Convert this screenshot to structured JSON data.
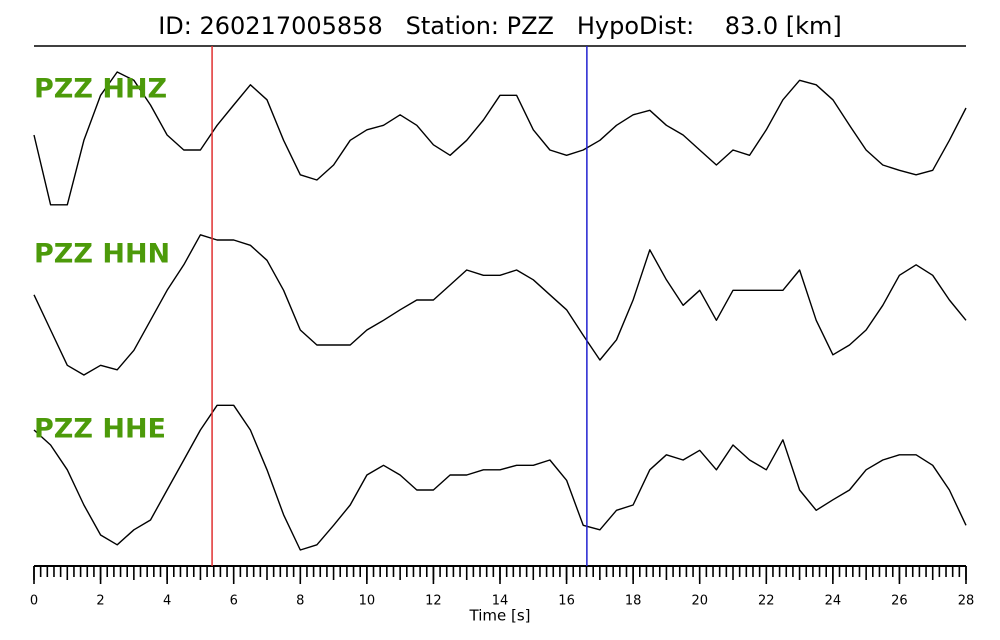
{
  "chart_data": {
    "type": "line",
    "title": "ID: 260217005858   Station: PZZ   HypoDist:    83.0 [km]",
    "xlabel": "Time [s]",
    "xlim": [
      0,
      28
    ],
    "xticks": [
      0,
      2,
      4,
      6,
      8,
      10,
      12,
      14,
      16,
      18,
      20,
      22,
      24,
      26,
      28
    ],
    "xminor": 0.2,
    "ylim": [
      -1,
      1
    ],
    "markers": [
      {
        "x": 5.35,
        "color": "#e03030"
      },
      {
        "x": 16.61,
        "color": "#2020d0"
      }
    ],
    "x": [
      0,
      0.5,
      1,
      1.5,
      2,
      2.5,
      3,
      3.5,
      4,
      4.5,
      5,
      5.5,
      6,
      6.5,
      7,
      7.5,
      8,
      8.5,
      9,
      9.5,
      10,
      10.5,
      11,
      11.5,
      12,
      12.5,
      13,
      13.5,
      14,
      14.5,
      15,
      15.5,
      16,
      16.5,
      17,
      17.5,
      18,
      18.5,
      19,
      19.5,
      20,
      20.5,
      21,
      21.5,
      22,
      22.5,
      23,
      23.5,
      24,
      24.5,
      25,
      25.5,
      26,
      26.5,
      27,
      27.5,
      28
    ],
    "series": [
      {
        "name": "PZZ HHZ",
        "color": "#000000",
        "label_color": "#4c9a0a",
        "values": [
          0,
          -0.93,
          -0.93,
          -0.07,
          0.53,
          0.84,
          0.73,
          0.4,
          0,
          -0.2,
          -0.2,
          0.13,
          0.4,
          0.67,
          0.47,
          -0.07,
          -0.53,
          -0.6,
          -0.4,
          -0.07,
          0.07,
          0.13,
          0.27,
          0.13,
          -0.13,
          -0.27,
          -0.07,
          0.2,
          0.53,
          0.53,
          0.07,
          -0.2,
          -0.27,
          -0.2,
          -0.07,
          0.13,
          0.27,
          0.33,
          0.13,
          0,
          -0.2,
          -0.4,
          -0.2,
          -0.27,
          0.07,
          0.47,
          0.73,
          0.67,
          0.47,
          0.13,
          -0.2,
          -0.4,
          -0.47,
          -0.53,
          -0.47,
          -0.07,
          0.36
        ]
      },
      {
        "name": "PZZ HHN",
        "color": "#000000",
        "label_color": "#4c9a0a",
        "values": [
          0.07,
          -0.4,
          -0.87,
          -1.0,
          -0.87,
          -0.93,
          -0.67,
          -0.27,
          0.13,
          0.47,
          0.87,
          0.8,
          0.8,
          0.73,
          0.53,
          0.13,
          -0.4,
          -0.6,
          -0.6,
          -0.6,
          -0.4,
          -0.27,
          -0.13,
          0,
          0,
          0.2,
          0.4,
          0.33,
          0.33,
          0.4,
          0.27,
          0.07,
          -0.13,
          -0.47,
          -0.8,
          -0.53,
          0,
          0.67,
          0.27,
          -0.07,
          0.13,
          -0.27,
          0.13,
          0.13,
          0.13,
          0.13,
          0.4,
          -0.27,
          -0.73,
          -0.6,
          -0.4,
          -0.07,
          0.33,
          0.47,
          0.33,
          0,
          -0.27
        ]
      },
      {
        "name": "PZZ HHE",
        "color": "#000000",
        "label_color": "#4c9a0a",
        "values": [
          0.6,
          0.4,
          0.07,
          -0.4,
          -0.8,
          -0.93,
          -0.73,
          -0.6,
          -0.2,
          0.2,
          0.6,
          0.93,
          0.93,
          0.6,
          0.07,
          -0.53,
          -1.0,
          -0.93,
          -0.67,
          -0.4,
          0,
          0.13,
          0,
          -0.2,
          -0.2,
          0,
          0,
          0.07,
          0.07,
          0.13,
          0.13,
          0.2,
          -0.07,
          -0.67,
          -0.73,
          -0.47,
          -0.4,
          0.07,
          0.27,
          0.2,
          0.33,
          0.07,
          0.4,
          0.2,
          0.07,
          0.47,
          -0.2,
          -0.47,
          -0.33,
          -0.2,
          0.07,
          0.2,
          0.27,
          0.27,
          0.13,
          -0.2,
          -0.67
        ]
      }
    ]
  }
}
